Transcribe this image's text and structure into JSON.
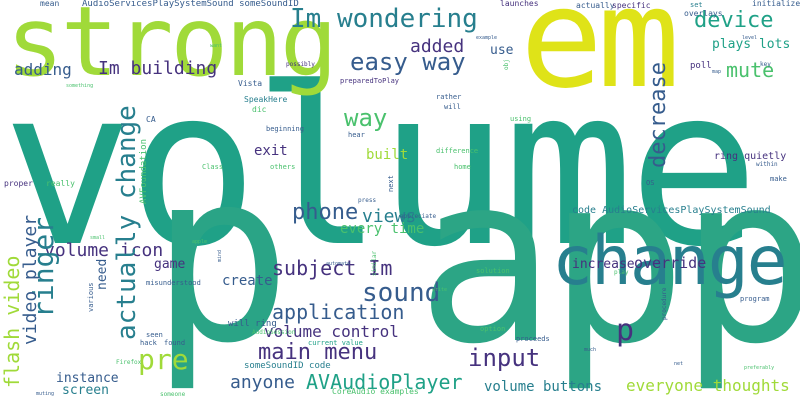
{
  "palette": {
    "dark_purple": "#46327e",
    "dark_blue": "#365c8d",
    "teal_blue": "#277f8e",
    "teal": "#1fa187",
    "green": "#4ac16d",
    "light_green": "#a0da39",
    "yellow": "#fde725",
    "background": "#ffffff"
  },
  "words": {
    "volume": "volume",
    "app": "app",
    "strong": "strong",
    "em": "em",
    "p_large": "p",
    "change": "change",
    "im_wondering": "Im wondering",
    "easy_way": "easy way",
    "added": "added",
    "adding": "adding",
    "im_building": "Im building",
    "device": "device",
    "mute": "mute",
    "way": "way",
    "actually_change": "actually change",
    "decrease": "decrease",
    "plays_lots": "plays lots",
    "exit": "exit",
    "built": "built",
    "phone": "phone",
    "views": "views",
    "every_time": "every time",
    "ringer": "ringer",
    "flash_video": "flash video",
    "video_player": "video player",
    "volume_icon": "volume icon",
    "subject_im": "subject Im",
    "sound": "sound",
    "application": "application",
    "volume_control": "volume control",
    "main_menu": "main menu",
    "pre": "pre",
    "input": "input",
    "p_small": "p",
    "anyone": "anyone",
    "avaudioplayer": "AVAudioPlayer",
    "volume_buttons": "volume buttons",
    "everyone_thoughts": "everyone thoughts",
    "increase": "increase",
    "override": "override",
    "create": "create",
    "instance": "instance",
    "screen": "screen",
    "game": "game",
    "need": "need",
    "use": "use",
    "ring_quietly": "ring quietly",
    "code_avservices": "code AudioServicesPlaySystemSound",
    "will_ring": "will ring",
    "avfoundation": "AVFoundation",
    "someSoundID_code": "someSoundID code",
    "current_value": "current value",
    "coreaudio_examples": "CoreAudio examples",
    "audioservices_somesound": "AudioServicesPlaySystemSound someSoundID",
    "mean": "mean",
    "launches": "launches",
    "actually_small": "actually",
    "specific": "specific",
    "set": "set",
    "overlays": "overlays",
    "initialize": "initialize",
    "poll": "poll",
    "speakhere": "SpeakHere",
    "dic": "dic",
    "beginning": "beginning",
    "hear": "hear",
    "difference": "difference",
    "home": "home",
    "others": "others",
    "class": "Class",
    "vista": "Vista",
    "ca": "CA",
    "preparedtoplay": "preparedToPlay",
    "rather": "rather",
    "will": "will",
    "using": "using",
    "within": "within",
    "make": "make",
    "os": "OS",
    "proper": "proper",
    "really": "really",
    "press": "press",
    "next": "next",
    "appreciate": "appreciate",
    "solution": "solution",
    "play": "play",
    "program": "program",
    "misunderstood": "misunderstood",
    "various": "various",
    "seen": "seen",
    "hack": "hack",
    "found": "found",
    "audiosession": "AudioSession",
    "option": "option",
    "proceeds": "proceeds",
    "possibly": "possibly",
    "something": "something",
    "example": "example",
    "key": "key",
    "map": "map",
    "firefox": "Firefox",
    "muting": "muting",
    "someone": "someone",
    "much": "much",
    "procedure": "procedure",
    "want": "want",
    "preferably": "preferably",
    "automate": "automate",
    "write": "write",
    "small": "small",
    "level": "level",
    "similar": "similar",
    "mind": "mind",
    "obj": "obj",
    "apple": "apple",
    "net": "net"
  }
}
